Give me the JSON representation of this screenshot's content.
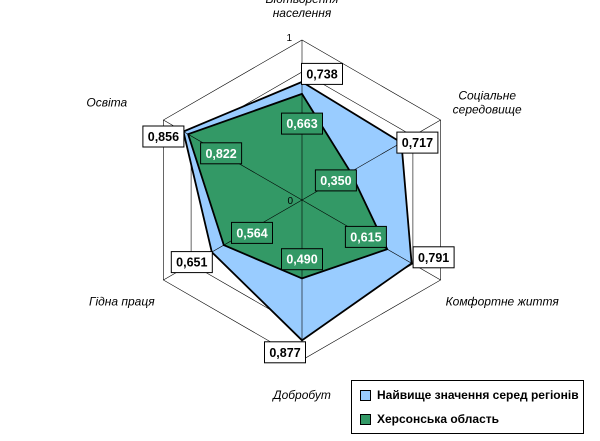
{
  "chart_data": {
    "type": "radar",
    "axes": [
      {
        "name": "Відтворення населення",
        "lines": [
          "Відтворення",
          "населення"
        ]
      },
      {
        "name": "Соціальне середовище",
        "lines": [
          "Соціальне",
          "середовище"
        ]
      },
      {
        "name": "Комфортне життя",
        "lines": [
          "Комфортне життя"
        ]
      },
      {
        "name": "Добробут",
        "lines": [
          "Добробут"
        ]
      },
      {
        "name": "Гідна праця",
        "lines": [
          "Гідна праця"
        ]
      },
      {
        "name": "Освіта",
        "lines": [
          "Освіта"
        ]
      }
    ],
    "range": [
      0,
      1
    ],
    "tick_labels": [
      "0",
      "1"
    ],
    "gridlines": 5,
    "series": [
      {
        "name": "Найвище значення серед регіонів",
        "values": [
          0.738,
          0.717,
          0.791,
          0.877,
          0.651,
          0.856
        ],
        "labels": [
          "0,738",
          "0,717",
          "0,791",
          "0,877",
          "0,651",
          "0,856"
        ],
        "color": "#99CCFF"
      },
      {
        "name": "Херсонська область",
        "values": [
          0.663,
          0.35,
          0.615,
          0.49,
          0.564,
          0.822
        ],
        "labels": [
          "0,663",
          "0,350",
          "0,615",
          "0,490",
          "0,564",
          "0,822"
        ],
        "color": "#339966"
      }
    ],
    "legend_position": "bottom-right"
  }
}
